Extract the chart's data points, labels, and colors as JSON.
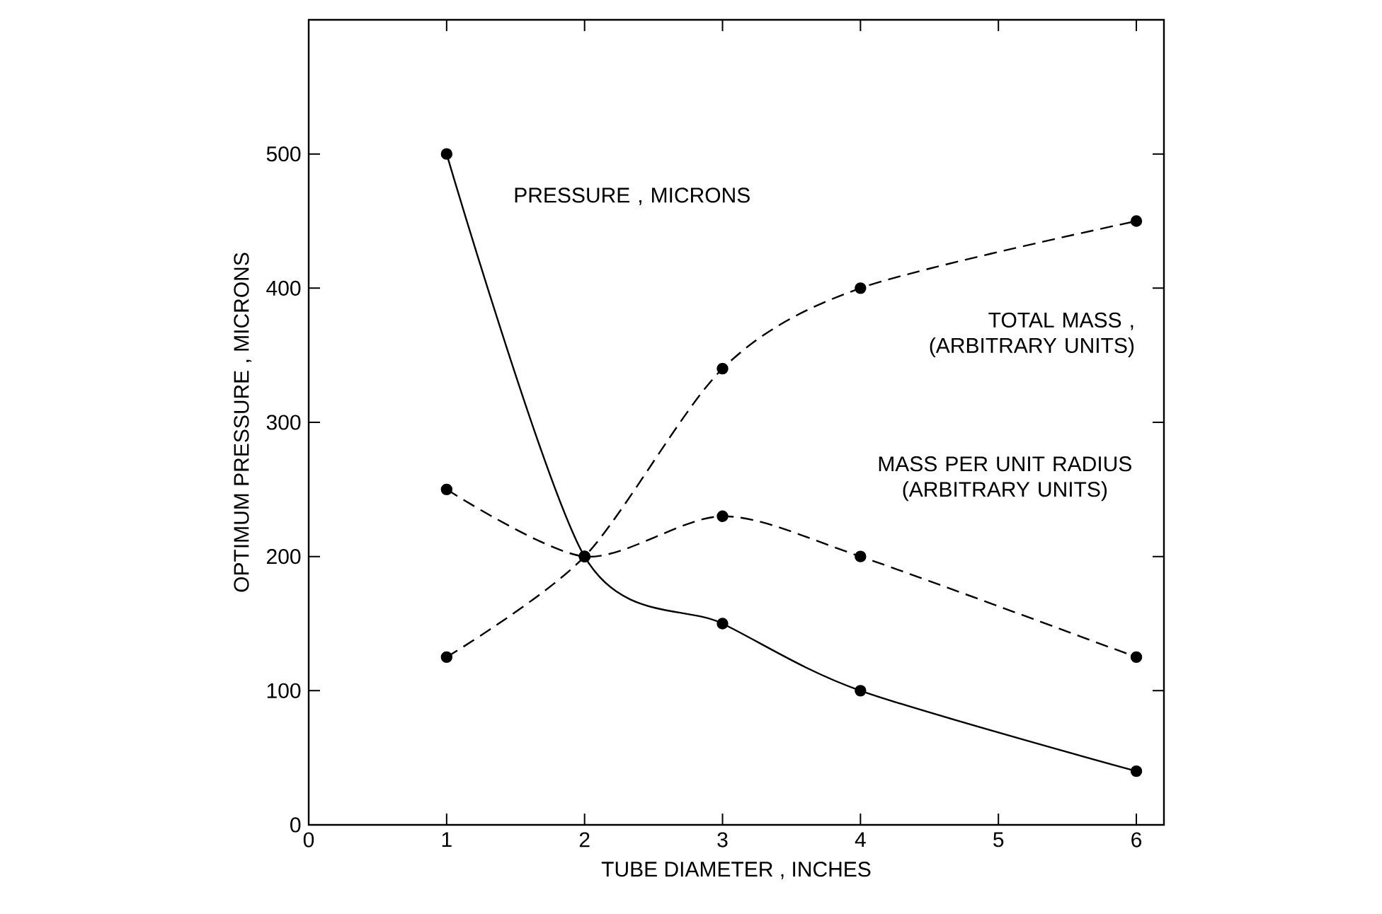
{
  "chart_data": {
    "type": "line",
    "xlabel": "TUBE DIAMETER , INCHES",
    "ylabel": "OPTIMUM PRESSURE , MICRONS",
    "x": [
      1,
      2,
      3,
      4,
      6
    ],
    "series": [
      {
        "name": "PRESSURE , MICRONS",
        "color": "#000000",
        "line_style": "solid",
        "values": [
          500,
          200,
          150,
          100,
          40
        ]
      },
      {
        "name": "TOTAL MASS , (ARBITRARY UNITS)",
        "color": "#000000",
        "line_style": "dashed",
        "values": [
          125,
          200,
          340,
          400,
          450
        ]
      },
      {
        "name": "MASS PER UNIT RADIUS (ARBITRARY UNITS)",
        "color": "#000000",
        "line_style": "dashed",
        "values": [
          250,
          200,
          230,
          200,
          125
        ]
      }
    ],
    "xlim": [
      0,
      6.2
    ],
    "ylim": [
      0,
      600
    ],
    "xticks": [
      0,
      1,
      2,
      3,
      4,
      5,
      6
    ],
    "yticks": [
      0,
      100,
      200,
      300,
      400,
      500
    ],
    "marker": "circle",
    "grid": false
  }
}
